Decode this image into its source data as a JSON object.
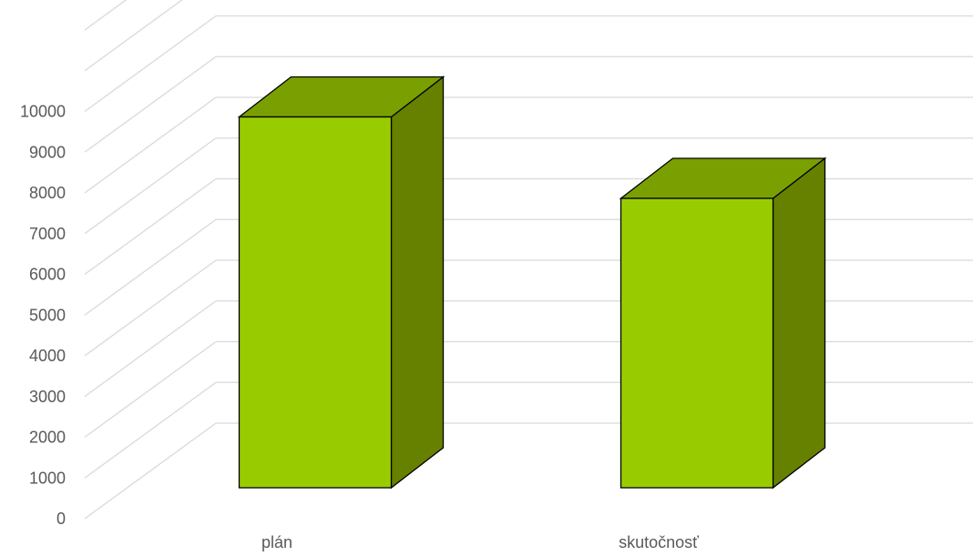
{
  "chart_data": {
    "type": "bar",
    "style": "3d-column",
    "categories": [
      "plán",
      "skutočnosť"
    ],
    "values": [
      10000,
      8000
    ],
    "ylim": [
      0,
      10000
    ],
    "yticks": [
      0,
      1000,
      2000,
      3000,
      4000,
      5000,
      6000,
      7000,
      8000,
      9000,
      10000
    ],
    "grid": true,
    "legend": "none",
    "colors": {
      "front": "#99CC00",
      "top": "#7A9F00",
      "side": "#668000",
      "outline": "#000000",
      "grid": "#D9D9D9",
      "text": "#595959"
    }
  }
}
